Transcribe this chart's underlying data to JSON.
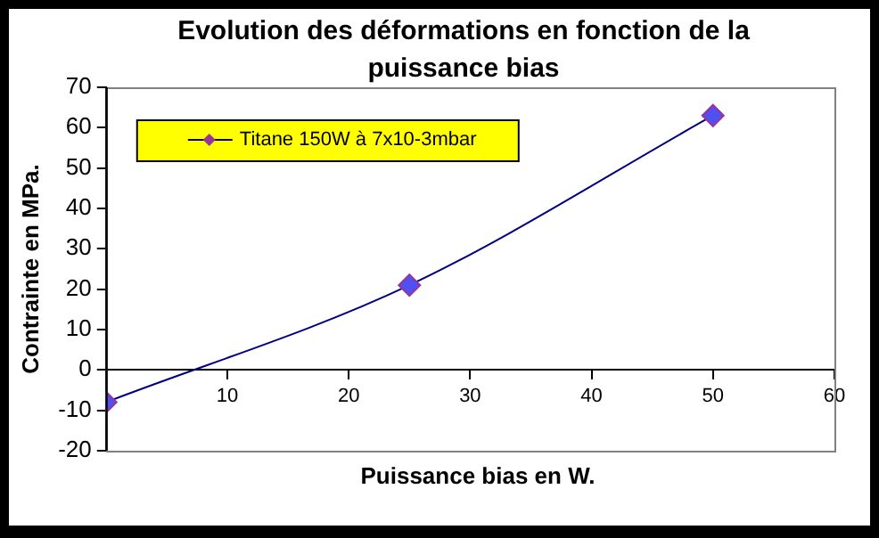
{
  "chart_data": {
    "type": "line",
    "title": "Evolution des déformations en fonction de la puissance bias",
    "xlabel": "Puissance bias en W.",
    "ylabel": "Contrainte en MPa.",
    "x": [
      0,
      25,
      50
    ],
    "series": [
      {
        "name": "Titane 150W à 7x10-3mbar",
        "color": "#000080",
        "values": [
          -8,
          21,
          63
        ]
      }
    ],
    "xlim": [
      0,
      60
    ],
    "xticks": [
      {
        "value": 0,
        "label": null
      },
      10,
      20,
      30,
      40,
      50,
      60
    ],
    "ylim": [
      -20,
      70
    ],
    "yticks": [
      -20,
      -10,
      0,
      10,
      20,
      30,
      40,
      50,
      60,
      70
    ],
    "grid": false,
    "legend": "top left",
    "marker": "diamond",
    "line_style": "solid"
  }
}
